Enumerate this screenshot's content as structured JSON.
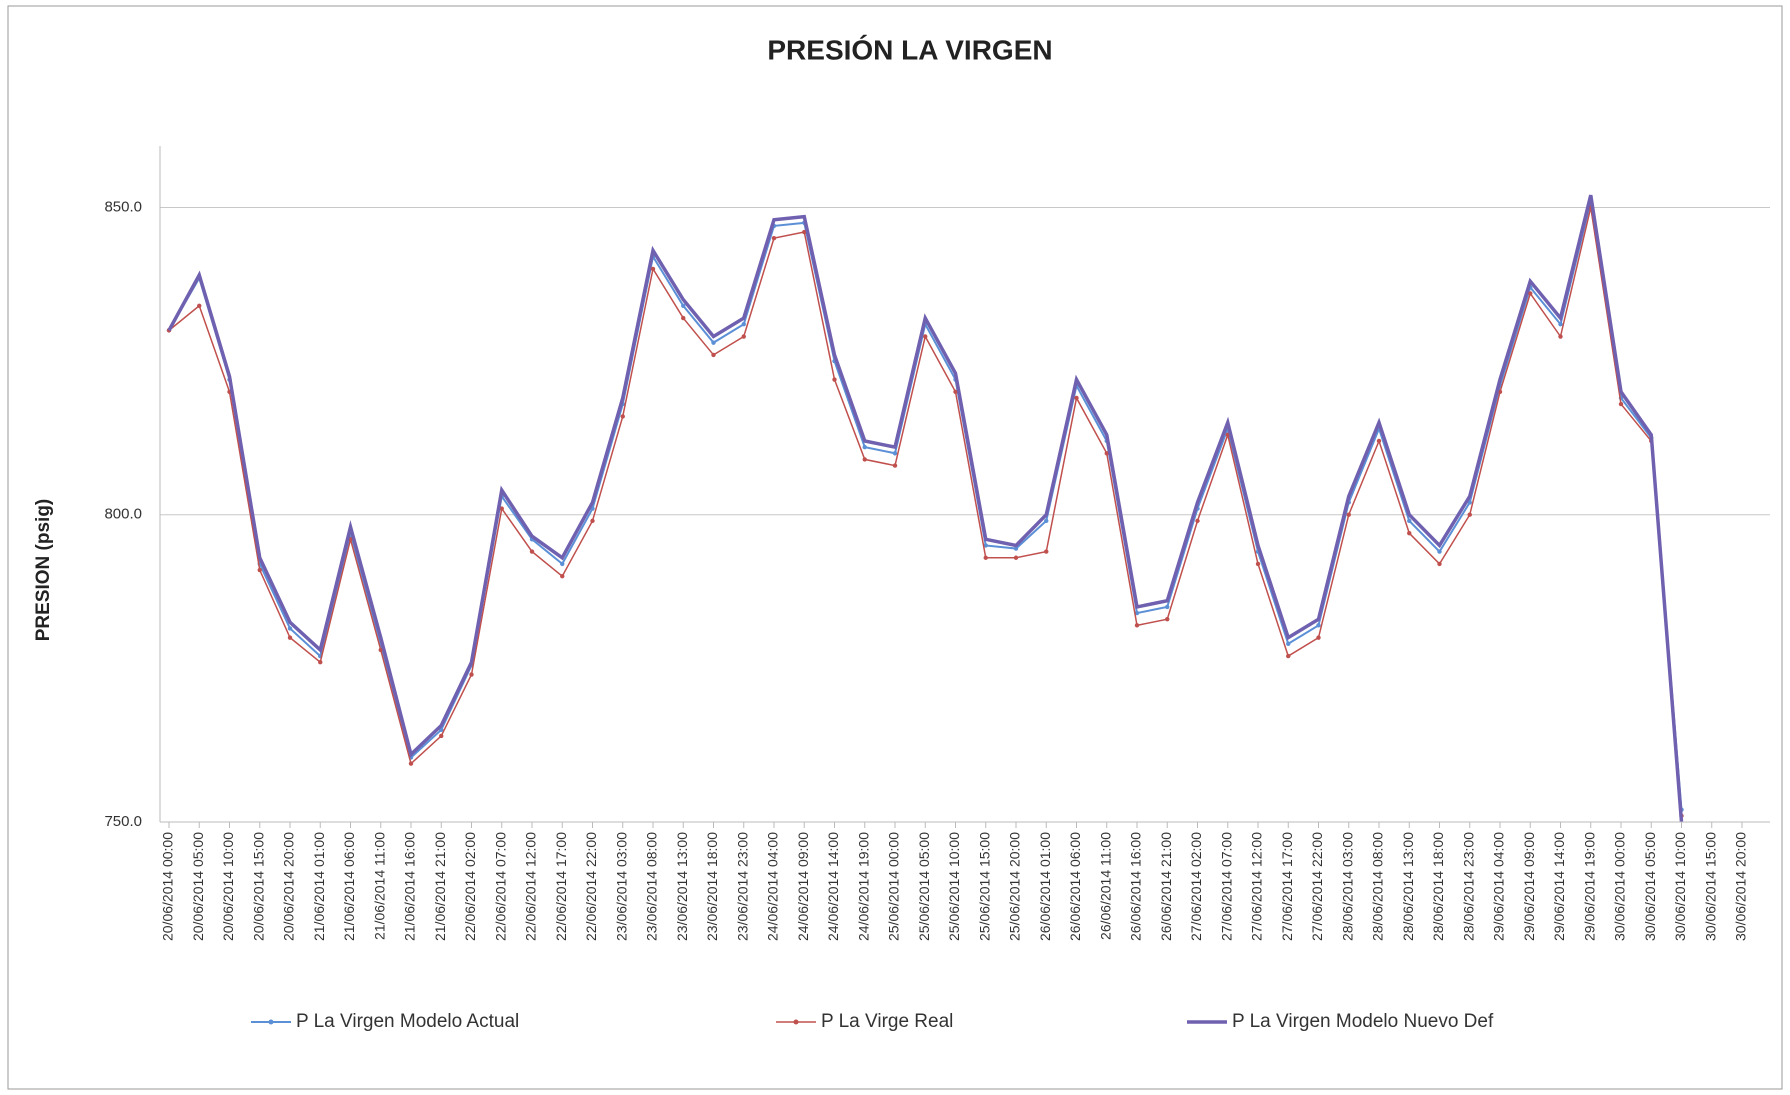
{
  "chart_data": {
    "type": "line",
    "title": "PRESIÓN LA VIRGEN",
    "y_label": "PRESION (psig)",
    "categories": [
      "20/06/2014 00:00",
      "20/06/2014 05:00",
      "20/06/2014 10:00",
      "20/06/2014 15:00",
      "20/06/2014 20:00",
      "21/06/2014 01:00",
      "21/06/2014 06:00",
      "21/06/2014 11:00",
      "21/06/2014 16:00",
      "21/06/2014 21:00",
      "22/06/2014 02:00",
      "22/06/2014 07:00",
      "22/06/2014 12:00",
      "22/06/2014 17:00",
      "22/06/2014 22:00",
      "23/06/2014 03:00",
      "23/06/2014 08:00",
      "23/06/2014 13:00",
      "23/06/2014 18:00",
      "23/06/2014 23:00",
      "24/06/2014 04:00",
      "24/06/2014 09:00",
      "24/06/2014 14:00",
      "24/06/2014 19:00",
      "25/06/2014 00:00",
      "25/06/2014 05:00",
      "25/06/2014 10:00",
      "25/06/2014 15:00",
      "25/06/2014 20:00",
      "26/06/2014 01:00",
      "26/06/2014 06:00",
      "26/06/2014 11:00",
      "26/06/2014 16:00",
      "26/06/2014 21:00",
      "27/06/2014 02:00",
      "27/06/2014 07:00",
      "27/06/2014 12:00",
      "27/06/2014 17:00",
      "27/06/2014 22:00",
      "28/06/2014 03:00",
      "28/06/2014 08:00",
      "28/06/2014 13:00",
      "28/06/2014 18:00",
      "28/06/2014 23:00",
      "29/06/2014 04:00",
      "29/06/2014 09:00",
      "29/06/2014 14:00",
      "29/06/2014 19:00",
      "30/06/2014 00:00",
      "30/06/2014 05:00",
      "30/06/2014 10:00",
      "30/06/2014 15:00",
      "30/06/2014 20:00"
    ],
    "series": [
      {
        "name": "P La Virgen Modelo Actual",
        "color": "#5b8fd6",
        "values": [
          830,
          838.5,
          822,
          792,
          781.5,
          777,
          797,
          779,
          760.5,
          765,
          775.5,
          803,
          796,
          792,
          801,
          818,
          842,
          834,
          828,
          831,
          847,
          847.5,
          825,
          811,
          810,
          831,
          822,
          795,
          794.5,
          799,
          821,
          812,
          784,
          785,
          801,
          814,
          794,
          779,
          782,
          802,
          814,
          799,
          794,
          802,
          821,
          837,
          831,
          851,
          819,
          812.5,
          752,
          null,
          null
        ]
      },
      {
        "name": "P La Virge Real",
        "color": "#c0504d",
        "values": [
          830,
          834,
          820,
          791,
          780,
          776,
          796,
          778,
          759.5,
          764,
          774,
          801,
          794,
          790,
          799,
          816,
          840,
          832,
          826,
          829,
          845,
          846,
          822,
          809,
          808,
          829,
          820,
          793,
          793,
          794,
          819,
          810,
          782,
          783,
          799,
          813,
          792,
          777,
          780,
          800,
          812,
          797,
          792,
          800,
          820,
          836,
          829,
          850,
          818,
          812,
          751,
          null,
          null
        ]
      },
      {
        "name": "P La Virgen Modelo Nuevo Def",
        "color": "#7060b0",
        "values": [
          830,
          839,
          822.5,
          793,
          782.5,
          778,
          798,
          780,
          761,
          765.7,
          776,
          804,
          796.5,
          793,
          802,
          819,
          843,
          835,
          829,
          832,
          848,
          848.5,
          826,
          812,
          811,
          832,
          823,
          796,
          795,
          800,
          822,
          813,
          785,
          786,
          802,
          815,
          795,
          780,
          783,
          803,
          815,
          800,
          795,
          803,
          822,
          838,
          832,
          852,
          820,
          813,
          750,
          null,
          null
        ]
      }
    ],
    "ylim": [
      750,
      860
    ],
    "yticks": [
      {
        "value": 750,
        "label": "750.0"
      },
      {
        "value": 800,
        "label": "800.0"
      },
      {
        "value": 850,
        "label": "850.0"
      }
    ],
    "grid": true,
    "legend": "bottom"
  }
}
